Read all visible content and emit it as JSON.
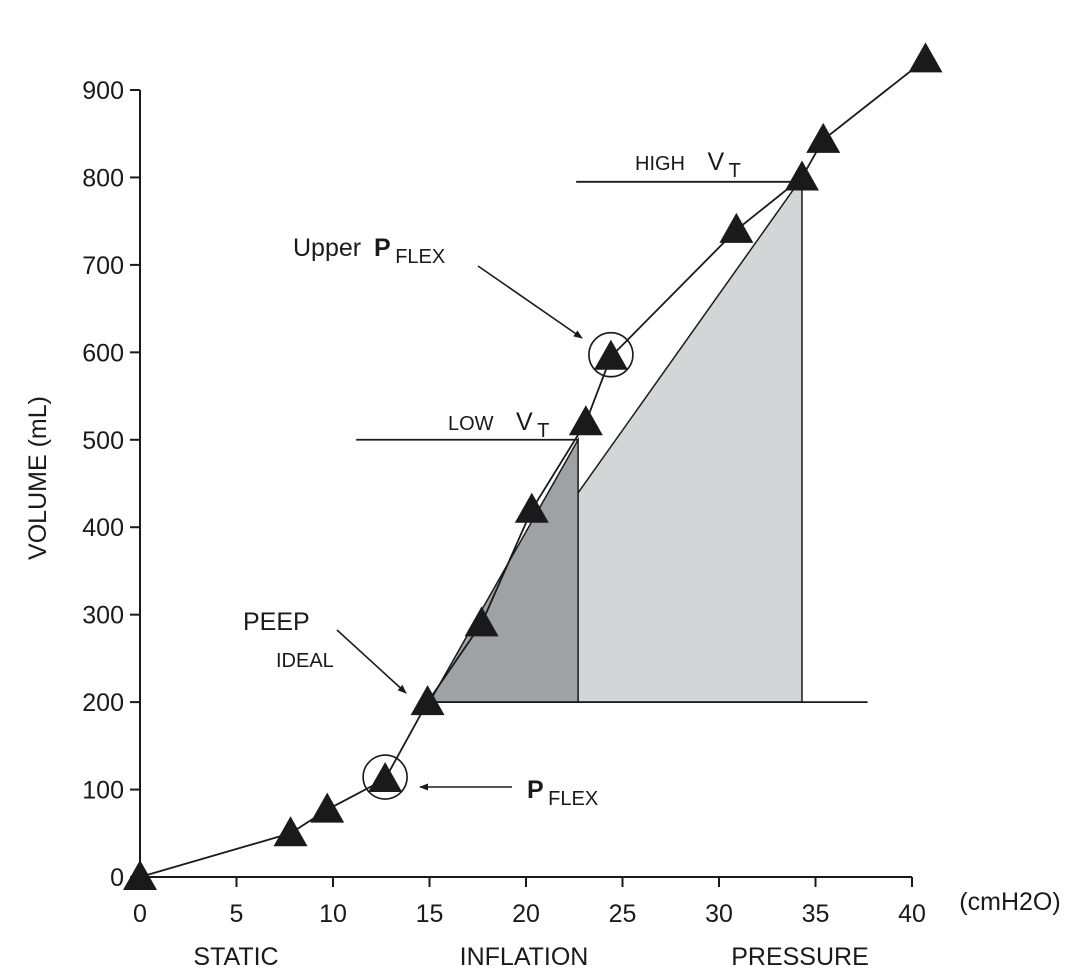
{
  "chart_data": {
    "type": "line",
    "title": "",
    "xlabel": "STATIC INFLATION PRESSURE",
    "xlabel_words": [
      "STATIC",
      "INFLATION",
      "PRESSURE"
    ],
    "x_unit": "(cmH2O)",
    "ylabel": "VOLUME (mL)",
    "xlim": [
      0,
      40
    ],
    "ylim": [
      0,
      900
    ],
    "x_ticks": [
      0,
      5,
      10,
      15,
      20,
      25,
      30,
      35,
      40
    ],
    "y_ticks": [
      0,
      100,
      200,
      300,
      400,
      500,
      600,
      700,
      800,
      900
    ],
    "grid": false,
    "series": [
      {
        "marker": "triangle",
        "x": [
          0,
          7.8,
          9.7,
          12.7,
          14.9,
          17.7,
          20.3,
          23.1,
          24.4,
          30.9,
          34.3,
          35.4,
          40.7
        ],
        "y": [
          0,
          50,
          77,
          112,
          200,
          290,
          420,
          520,
          595,
          740,
          800,
          843,
          935
        ]
      }
    ],
    "shaded_regions": [
      {
        "name": "low-vt-triangle",
        "color": "#a0a1a4",
        "points": [
          [
            15,
            200
          ],
          [
            22.7,
            200
          ],
          [
            22.7,
            500
          ]
        ]
      },
      {
        "name": "high-vt-triangle",
        "color": "#d4d5d7",
        "points": [
          [
            15,
            200
          ],
          [
            34.3,
            200
          ],
          [
            34.3,
            800
          ]
        ]
      }
    ],
    "reference_lines": [
      {
        "name": "baseline-200",
        "x1": 15,
        "x2": 37.7,
        "y": 200
      },
      {
        "name": "low-vt-line",
        "x1": 11.2,
        "x2": 22.7,
        "y": 500
      },
      {
        "name": "high-vt-line",
        "x1": 22.6,
        "x2": 34.3,
        "y": 795
      }
    ],
    "circled_points": [
      {
        "name": "pflex-circle",
        "x": 12.7,
        "y": 112
      },
      {
        "name": "upper-pflex-circle",
        "x": 24.4,
        "y": 595
      }
    ],
    "annotations": {
      "high_vt": {
        "small": "HIGH",
        "main": "V",
        "sub": "T"
      },
      "low_vt": {
        "small": "LOW",
        "main": "V",
        "sub": "T"
      },
      "upper_pflex": {
        "prefix": "Upper ",
        "main": "P",
        "sub": "FLEX"
      },
      "pflex": {
        "main": "P",
        "sub": "FLEX"
      },
      "peep": {
        "main": "PEEP",
        "sub": "IDEAL"
      }
    },
    "colors": {
      "line": "#1a1a1a",
      "marker": "#1a1a1a",
      "dark_shade": "#a0a1a4",
      "light_shade": "#d4d5d7"
    }
  }
}
